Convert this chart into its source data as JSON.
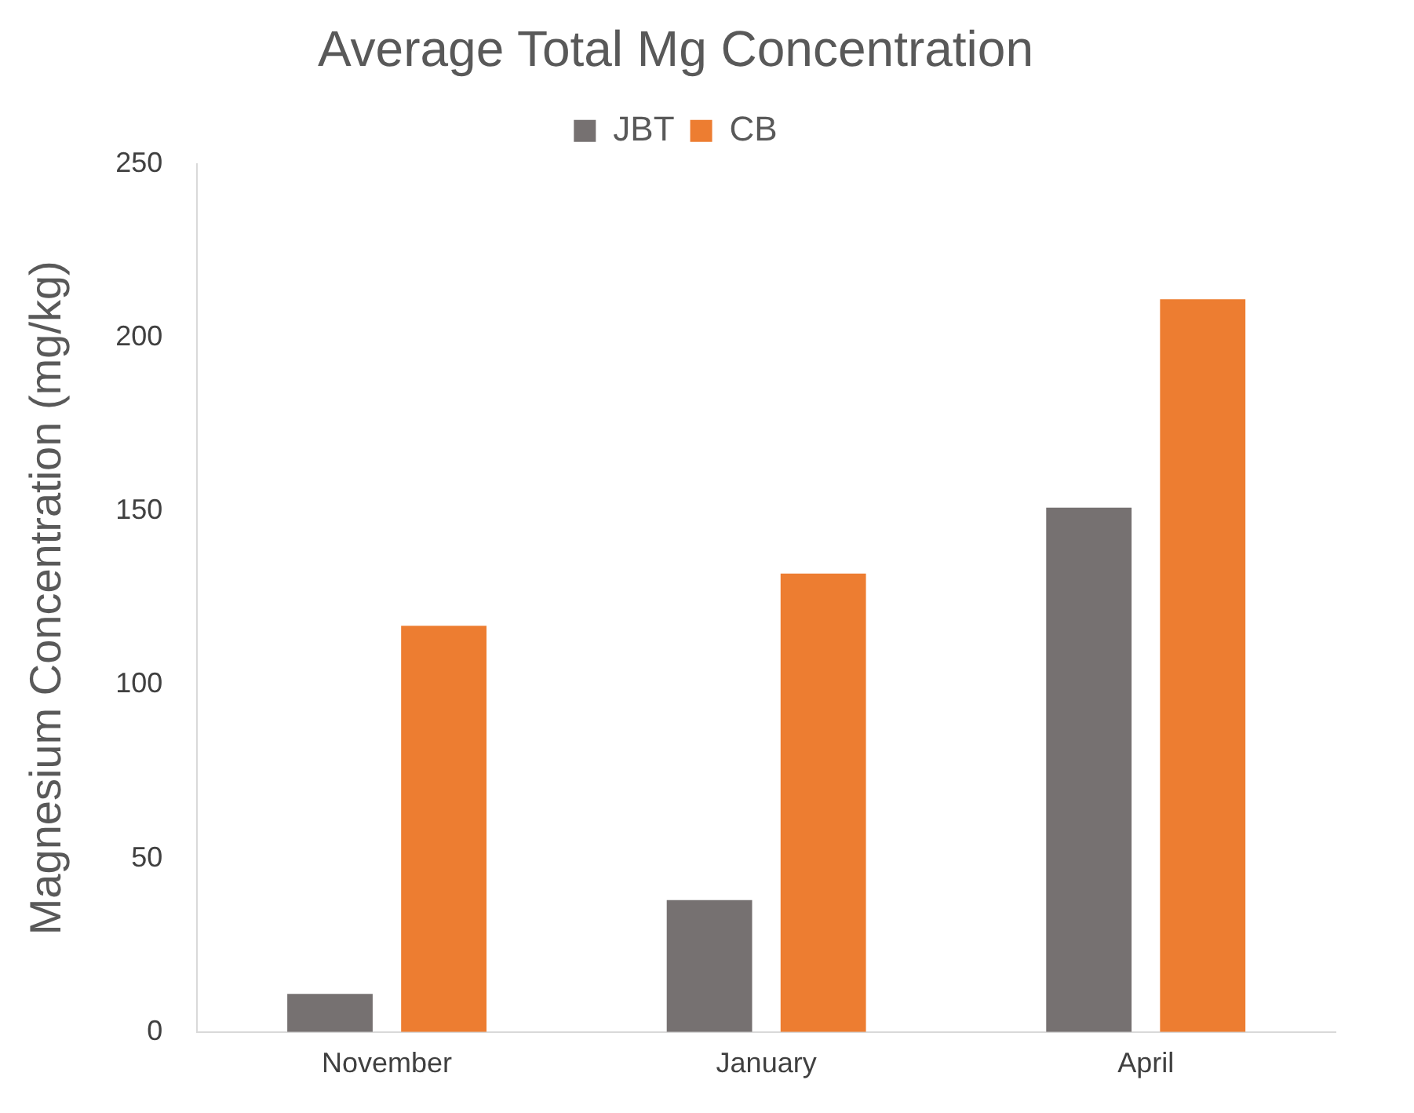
{
  "chart_data": {
    "type": "bar",
    "title": "Average Total Mg Concentration",
    "ylabel": "Magnesium Concentration (mg/kg)",
    "categories": [
      "November",
      "January",
      "April"
    ],
    "series": [
      {
        "name": "JBT",
        "color": "#767171",
        "values": [
          11,
          38,
          151
        ]
      },
      {
        "name": "CB",
        "color": "#ed7d31",
        "values": [
          117,
          132,
          211
        ]
      }
    ],
    "ylim": [
      0,
      250
    ],
    "yticks": [
      0,
      50,
      100,
      150,
      200,
      250
    ],
    "grid": false,
    "legend": "top"
  }
}
